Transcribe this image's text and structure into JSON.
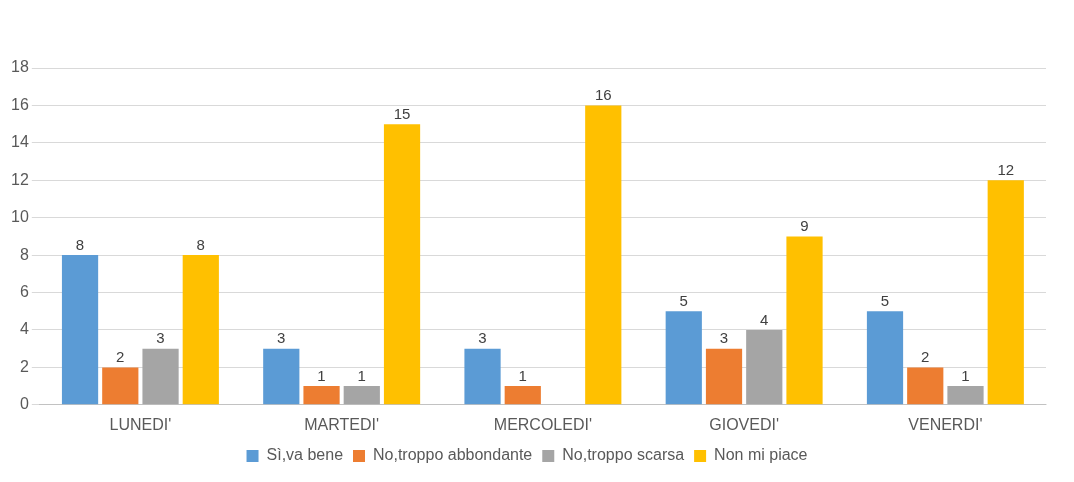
{
  "chart_data": {
    "type": "bar",
    "categories": [
      "LUNEDI'",
      "MARTEDI'",
      "MERCOLEDI'",
      "GIOVEDI'",
      "VENERDI'"
    ],
    "series": [
      {
        "name": "Sì,va bene",
        "color": "#5b9bd5",
        "values": [
          8,
          3,
          3,
          5,
          5
        ]
      },
      {
        "name": "No,troppo abbondante",
        "color": "#ed7d31",
        "values": [
          2,
          1,
          1,
          3,
          2
        ]
      },
      {
        "name": "No,troppo scarsa",
        "color": "#a5a5a5",
        "values": [
          3,
          1,
          null,
          4,
          1
        ]
      },
      {
        "name": "Non mi piace",
        "color": "#ffc000",
        "values": [
          8,
          15,
          16,
          9,
          12
        ]
      }
    ],
    "ylim": [
      0,
      18
    ],
    "yticks": [
      0,
      2,
      4,
      6,
      8,
      10,
      12,
      14,
      16,
      18
    ],
    "grid": "y",
    "legend": "bottom",
    "data_labels": true
  }
}
